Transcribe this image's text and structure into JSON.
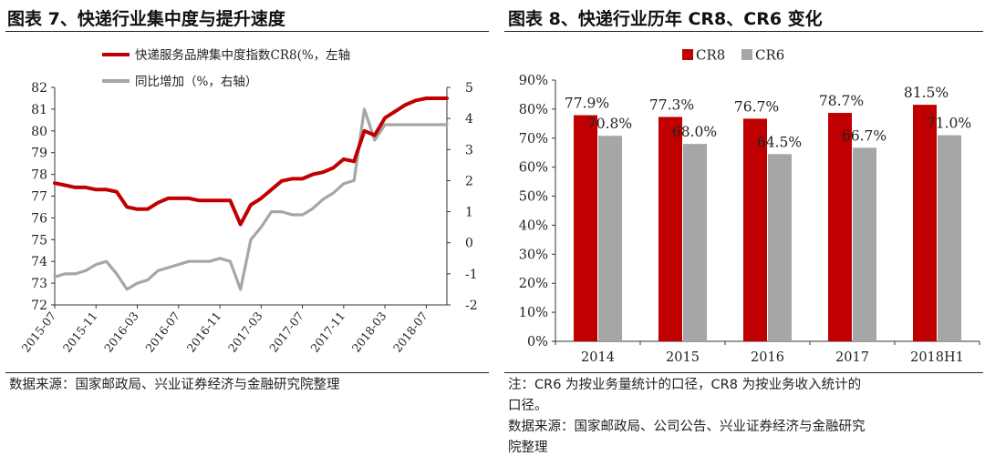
{
  "left": {
    "title": "图表 7、快递行业集中度与提升速度",
    "source": "数据来源：国家邮政局、兴业证券经济与金融研究院整理",
    "legend": [
      {
        "label": "快递服务品牌集中度指数CR8(%，左轴",
        "color": "#c00000"
      },
      {
        "label": "同比增加（%，右轴）",
        "color": "#a6a6a6"
      }
    ]
  },
  "right": {
    "title": "图表 8、快递行业历年 CR8、CR6 变化",
    "note_lines": [
      "注：CR6 为按业务量统计的口径，CR8 为按业务收入统计的",
      "口径。"
    ],
    "source_lines": [
      "数据来源：国家邮政局、公司公告、兴业证券经济与金融研究",
      "院整理"
    ]
  },
  "chart_data": [
    {
      "type": "line",
      "title": "快递行业集中度与提升速度",
      "x_ticks": [
        "2015-07",
        "2015-11",
        "2016-03",
        "2016-07",
        "2016-11",
        "2017-03",
        "2017-07",
        "2017-11",
        "2018-03",
        "2018-07"
      ],
      "y_left": {
        "lim": [
          72,
          82
        ],
        "ticks": [
          72,
          73,
          74,
          75,
          76,
          77,
          78,
          79,
          80,
          81,
          82
        ]
      },
      "y_right": {
        "lim": [
          -2,
          5
        ],
        "ticks": [
          -2,
          -1,
          0,
          1,
          2,
          3,
          4,
          5
        ]
      },
      "grid": false,
      "legend_position": "top",
      "series": [
        {
          "name": "快递服务品牌集中度指数CR8(%，左轴",
          "axis": "left",
          "color": "#c00000",
          "x": [
            "2015-07",
            "2015-08",
            "2015-09",
            "2015-10",
            "2015-11",
            "2015-12",
            "2016-01",
            "2016-02",
            "2016-03",
            "2016-04",
            "2016-05",
            "2016-06",
            "2016-07",
            "2016-08",
            "2016-09",
            "2016-10",
            "2016-11",
            "2016-12",
            "2017-01",
            "2017-02",
            "2017-03",
            "2017-04",
            "2017-05",
            "2017-06",
            "2017-07",
            "2017-08",
            "2017-09",
            "2017-10",
            "2017-11",
            "2017-12",
            "2018-01",
            "2018-02",
            "2018-03",
            "2018-04",
            "2018-05",
            "2018-06",
            "2018-07",
            "2018-08",
            "2018-09"
          ],
          "y": [
            77.6,
            77.5,
            77.4,
            77.4,
            77.3,
            77.3,
            77.2,
            76.5,
            76.4,
            76.4,
            76.7,
            76.9,
            76.9,
            76.9,
            76.8,
            76.8,
            76.8,
            76.8,
            75.7,
            76.6,
            76.9,
            77.3,
            77.7,
            77.8,
            77.8,
            78.0,
            78.1,
            78.3,
            78.7,
            78.6,
            80.0,
            79.8,
            80.6,
            80.9,
            81.2,
            81.4,
            81.5,
            81.5,
            81.5
          ]
        },
        {
          "name": "同比增加（%，右轴）",
          "axis": "right",
          "color": "#a6a6a6",
          "x": [
            "2015-07",
            "2015-08",
            "2015-09",
            "2015-10",
            "2015-11",
            "2015-12",
            "2016-01",
            "2016-02",
            "2016-03",
            "2016-04",
            "2016-05",
            "2016-06",
            "2016-07",
            "2016-08",
            "2016-09",
            "2016-10",
            "2016-11",
            "2016-12",
            "2017-01",
            "2017-02",
            "2017-03",
            "2017-04",
            "2017-05",
            "2017-06",
            "2017-07",
            "2017-08",
            "2017-09",
            "2017-10",
            "2017-11",
            "2017-12",
            "2018-01",
            "2018-02",
            "2018-03",
            "2018-04",
            "2018-05",
            "2018-06",
            "2018-07",
            "2018-08",
            "2018-09"
          ],
          "y": [
            -1.1,
            -1.0,
            -1.0,
            -0.9,
            -0.7,
            -0.6,
            -1.0,
            -1.5,
            -1.3,
            -1.2,
            -0.9,
            -0.8,
            -0.7,
            -0.6,
            -0.6,
            -0.6,
            -0.5,
            -0.6,
            -1.5,
            0.1,
            0.5,
            1.0,
            1.0,
            0.9,
            0.9,
            1.1,
            1.4,
            1.6,
            1.9,
            2.0,
            4.3,
            3.3,
            3.8,
            3.8,
            3.8,
            3.8,
            3.8,
            3.8,
            3.8
          ]
        }
      ]
    },
    {
      "type": "bar",
      "title": "快递行业历年 CR8、CR6 变化",
      "categories": [
        "2014",
        "2015",
        "2016",
        "2017",
        "2018H1"
      ],
      "ylim": [
        0,
        90
      ],
      "y_ticks": [
        0,
        10,
        20,
        30,
        40,
        50,
        60,
        70,
        80,
        90
      ],
      "y_tick_suffix": "%",
      "grid": false,
      "legend_position": "top",
      "series": [
        {
          "name": "CR8",
          "color": "#c00000",
          "values": [
            77.9,
            77.3,
            76.7,
            78.7,
            81.5
          ],
          "labels": [
            "77.9%",
            "77.3%",
            "76.7%",
            "78.7%",
            "81.5%"
          ]
        },
        {
          "name": "CR6",
          "color": "#a6a6a6",
          "values": [
            70.8,
            68.0,
            64.5,
            66.7,
            71.0
          ],
          "labels": [
            "70.8%",
            "68.0%",
            "64.5%",
            "66.7%",
            "71.0%"
          ]
        }
      ]
    }
  ]
}
